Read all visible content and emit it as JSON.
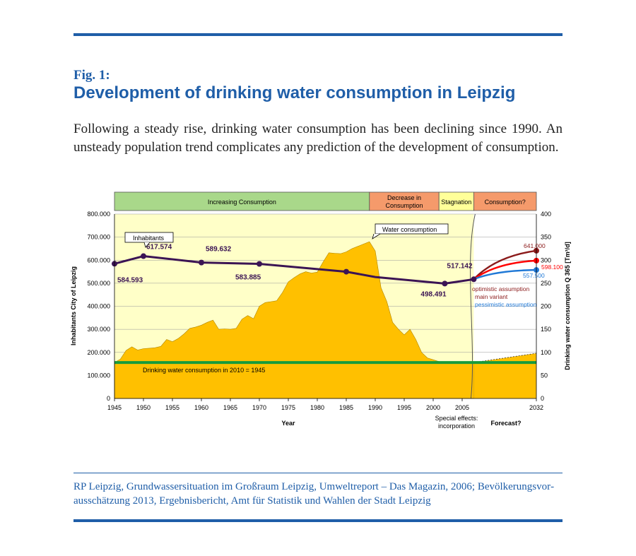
{
  "header": {
    "fig_label": "Fig. 1:",
    "title": "Development of drinking water consumption in Leipzig",
    "intro": "Following a steady rise, drinking water consumption has been declining since 1990. An unsteady population trend complicates any prediction of the development of consumption."
  },
  "source": "RP Leipzig, Grundwassersituation im Großraum Leipzig, Umweltreport – Das Magazin, 2006; Bevölkerungsvor­ausschätzung 2013, Ergebnisbericht, Amt für Statistik und Wahlen der Stadt Leipzig",
  "colors": {
    "accent": "#1f5ea8",
    "plot_bg": "#ffffc8",
    "area_fill": "#ffc000",
    "population_line": "#3b1454",
    "reference_line": "#169b3c",
    "optimistic": "#8b1a1a",
    "main": "#ff0000",
    "pessimistic": "#1f78d6",
    "phase_increase": "#a9d88a",
    "phase_decrease": "#f59a6b",
    "phase_stagnation": "#ffff99",
    "phase_consumption": "#f59a6b"
  },
  "chart_data": {
    "type": "line",
    "title": "",
    "xlabel": "Year",
    "ylabel_left": "Inhabitants City of Leipzig",
    "ylabel_right": "Drinking water consumption Q 365 [Tm³/d]",
    "x_ticks": [
      "1945",
      "1950",
      "1955",
      "1960",
      "1965",
      "1970",
      "1975",
      "1980",
      "1985",
      "1990",
      "1995",
      "2000",
      "2005",
      "2032"
    ],
    "y_left_ticks": [
      "0",
      "100.000",
      "200.000",
      "300.000",
      "400.000",
      "500.000",
      "600.000",
      "700.000",
      "800.000"
    ],
    "y_right_ticks": [
      "0",
      "50",
      "100",
      "150",
      "200",
      "250",
      "300",
      "350",
      "400"
    ],
    "ylim_left": [
      0,
      800000
    ],
    "ylim_right": [
      0,
      400
    ],
    "grid": true,
    "phases": [
      {
        "label": "Increasing Consumption",
        "from": 1945,
        "to": 1989
      },
      {
        "label": "Decrease in Consumption",
        "from": 1989,
        "to": 2001
      },
      {
        "label": "Stagnation",
        "from": 2001,
        "to": 2007
      },
      {
        "label": "Consumption?",
        "from": 2007,
        "to": 2032
      }
    ],
    "series": [
      {
        "name": "Water consumption",
        "axis": "right",
        "kind": "area",
        "points": [
          [
            1945,
            78
          ],
          [
            1946,
            85
          ],
          [
            1947,
            104
          ],
          [
            1948,
            112
          ],
          [
            1949,
            105
          ],
          [
            1950,
            108
          ],
          [
            1951,
            109
          ],
          [
            1952,
            110
          ],
          [
            1953,
            113
          ],
          [
            1954,
            128
          ],
          [
            1955,
            123
          ],
          [
            1956,
            130
          ],
          [
            1957,
            140
          ],
          [
            1958,
            152
          ],
          [
            1959,
            155
          ],
          [
            1960,
            159
          ],
          [
            1961,
            165
          ],
          [
            1962,
            170
          ],
          [
            1963,
            150
          ],
          [
            1964,
            151
          ],
          [
            1965,
            150
          ],
          [
            1966,
            152
          ],
          [
            1967,
            172
          ],
          [
            1968,
            180
          ],
          [
            1969,
            173
          ],
          [
            1970,
            200
          ],
          [
            1971,
            208
          ],
          [
            1972,
            210
          ],
          [
            1973,
            212
          ],
          [
            1974,
            230
          ],
          [
            1975,
            253
          ],
          [
            1976,
            262
          ],
          [
            1977,
            270
          ],
          [
            1978,
            275
          ],
          [
            1979,
            272
          ],
          [
            1980,
            274
          ],
          [
            1981,
            296
          ],
          [
            1982,
            316
          ],
          [
            1983,
            315
          ],
          [
            1984,
            314
          ],
          [
            1985,
            318
          ],
          [
            1986,
            325
          ],
          [
            1987,
            330
          ],
          [
            1988,
            335
          ],
          [
            1989,
            340
          ],
          [
            1990,
            320
          ],
          [
            1991,
            240
          ],
          [
            1992,
            210
          ],
          [
            1993,
            165
          ],
          [
            1994,
            150
          ],
          [
            1995,
            138
          ],
          [
            1996,
            150
          ],
          [
            1997,
            128
          ],
          [
            1998,
            100
          ],
          [
            1999,
            88
          ],
          [
            2000,
            84
          ],
          [
            2001,
            80
          ],
          [
            2002,
            78
          ],
          [
            2003,
            78
          ],
          [
            2004,
            78
          ],
          [
            2005,
            78
          ],
          [
            2006,
            78
          ],
          [
            2007,
            78
          ],
          [
            2032,
            98
          ]
        ]
      },
      {
        "name": "Inhabitants",
        "axis": "left",
        "kind": "line",
        "points": [
          [
            1945,
            584593
          ],
          [
            1950,
            617574
          ],
          [
            1960,
            589632
          ],
          [
            1970,
            583885
          ],
          [
            1985,
            550000
          ],
          [
            1990,
            527000
          ],
          [
            2002,
            498491
          ],
          [
            2007,
            517142
          ]
        ],
        "point_labels": [
          {
            "x": 1945,
            "text": "584.593"
          },
          {
            "x": 1950,
            "text": "617.574"
          },
          {
            "x": 1960,
            "text": "589.632"
          },
          {
            "x": 1970,
            "text": "583.885"
          },
          {
            "x": 2002,
            "text": "498.491"
          },
          {
            "x": 2007,
            "text": "517.142"
          }
        ]
      },
      {
        "name": "optimistic assumption",
        "axis": "left",
        "kind": "forecast",
        "points": [
          [
            2007,
            517142
          ],
          [
            2032,
            641000
          ]
        ],
        "end_label": "641.000"
      },
      {
        "name": "main variant",
        "axis": "left",
        "kind": "forecast",
        "points": [
          [
            2007,
            517142
          ],
          [
            2032,
            598100
          ]
        ],
        "end_label": "598.100"
      },
      {
        "name": "pessimistic assumption",
        "axis": "left",
        "kind": "forecast",
        "points": [
          [
            2007,
            517142
          ],
          [
            2032,
            557500
          ]
        ],
        "end_label": "557.500"
      }
    ],
    "reference_line": {
      "label": "Drinking water consumption in 2010 = 1945",
      "axis": "right",
      "value": 78
    },
    "annotations": {
      "inhabitants_box": "Inhabitants",
      "water_box": "Water consumption",
      "special_effects": [
        "Special effects:",
        "incorporation"
      ],
      "forecast": "Forecast?"
    }
  }
}
